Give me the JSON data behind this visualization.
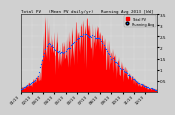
{
  "title": "Total PV   (Mean PV daily/yr)   Running Avg 2013 [kW]",
  "bg_color": "#d0d0d0",
  "plot_bg_color": "#d0d0d0",
  "bar_color": "#ff0000",
  "avg_color": "#0055ff",
  "ylim": [
    0,
    3.5
  ],
  "yticks": [
    0.5,
    1.0,
    1.5,
    2.0,
    2.5,
    3.0,
    3.5
  ],
  "ytick_labels": [
    "0.5",
    "1",
    "1.5",
    "2",
    "2.5",
    "3",
    "3.5"
  ],
  "n_points": 365,
  "grid_color": "#ffffff",
  "legend_labels": [
    "Total PV",
    "Running Avg"
  ],
  "month_positions": [
    0,
    31,
    59,
    90,
    120,
    151,
    181,
    212,
    243,
    273,
    304,
    334
  ],
  "month_labels": [
    "01/13",
    "02/13",
    "03/13",
    "04/13",
    "05/13",
    "06/13",
    "07/13",
    "08/13",
    "09/13",
    "10/13",
    "11/13",
    "12/13"
  ]
}
